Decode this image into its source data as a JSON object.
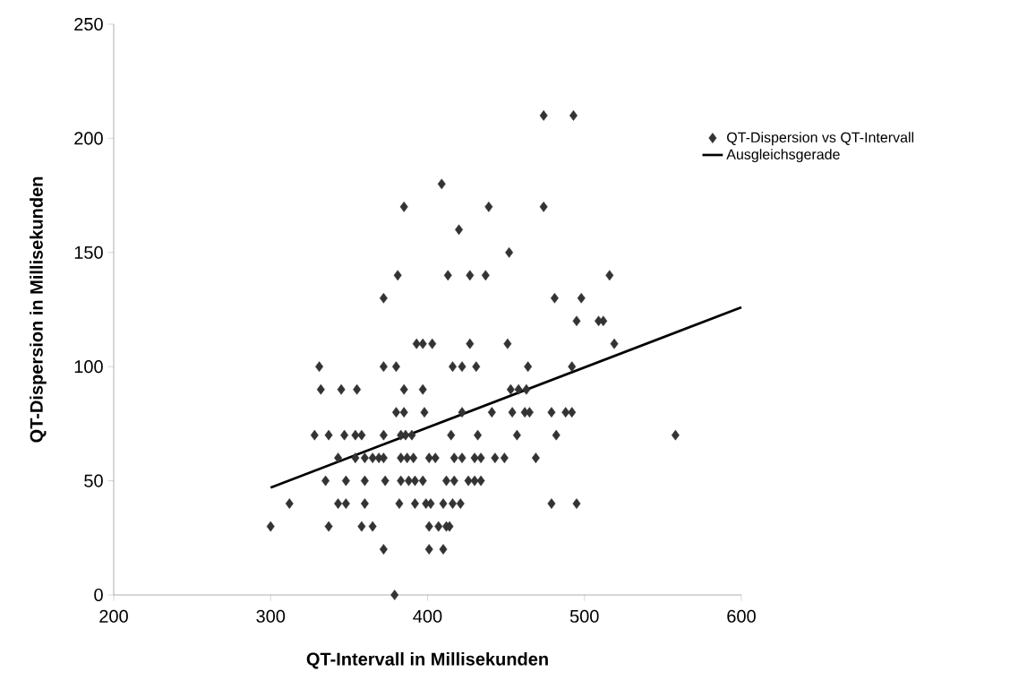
{
  "chart_data": {
    "type": "scatter",
    "xlabel": "QT-Intervall in Millisekunden",
    "ylabel": "QT-Dispersion in Millisekunden",
    "xlim": [
      200,
      600
    ],
    "ylim": [
      0,
      250
    ],
    "xticks": [
      200,
      300,
      400,
      500,
      600
    ],
    "yticks": [
      0,
      50,
      100,
      150,
      200,
      250
    ],
    "legend": "right",
    "series": [
      {
        "name": "QT-Dispersion vs QT-Intervall",
        "color": "#333333",
        "marker": "diamond",
        "x": [
          474,
          493,
          409,
          385,
          439,
          474,
          420,
          452,
          381,
          413,
          427,
          437,
          516,
          372,
          481,
          498,
          495,
          509,
          512,
          393,
          397,
          403,
          427,
          451,
          519,
          331,
          372,
          380,
          416,
          422,
          431,
          464,
          492,
          332,
          345,
          355,
          385,
          397,
          453,
          458,
          463,
          380,
          385,
          398,
          422,
          441,
          454,
          462,
          465,
          479,
          488,
          492,
          328,
          337,
          347,
          354,
          358,
          372,
          383,
          386,
          390,
          415,
          432,
          457,
          482,
          558,
          343,
          354,
          360,
          365,
          369,
          372,
          383,
          387,
          391,
          401,
          405,
          417,
          422,
          430,
          434,
          443,
          449,
          469,
          335,
          348,
          360,
          373,
          383,
          388,
          392,
          397,
          412,
          417,
          426,
          430,
          434,
          312,
          343,
          348,
          360,
          382,
          392,
          399,
          402,
          410,
          416,
          421,
          479,
          495,
          300,
          337,
          358,
          365,
          401,
          407,
          412,
          414,
          372,
          401,
          410,
          379
        ],
        "values": [
          210,
          210,
          180,
          170,
          170,
          170,
          160,
          150,
          140,
          140,
          140,
          140,
          140,
          130,
          130,
          130,
          120,
          120,
          120,
          110,
          110,
          110,
          110,
          110,
          110,
          100,
          100,
          100,
          100,
          100,
          100,
          100,
          100,
          90,
          90,
          90,
          90,
          90,
          90,
          90,
          90,
          80,
          80,
          80,
          80,
          80,
          80,
          80,
          80,
          80,
          80,
          80,
          70,
          70,
          70,
          70,
          70,
          70,
          70,
          70,
          70,
          70,
          70,
          70,
          70,
          70,
          60,
          60,
          60,
          60,
          60,
          60,
          60,
          60,
          60,
          60,
          60,
          60,
          60,
          60,
          60,
          60,
          60,
          60,
          50,
          50,
          50,
          50,
          50,
          50,
          50,
          50,
          50,
          50,
          50,
          50,
          50,
          40,
          40,
          40,
          40,
          40,
          40,
          40,
          40,
          40,
          40,
          40,
          40,
          40,
          30,
          30,
          30,
          30,
          30,
          30,
          30,
          30,
          20,
          20,
          20,
          0
        ]
      },
      {
        "name": "Ausgleichsgerade",
        "type": "line",
        "color": "#000000",
        "marker": "none",
        "line_style": "solid",
        "x": [
          300,
          600
        ],
        "values": [
          47,
          126
        ]
      }
    ]
  }
}
